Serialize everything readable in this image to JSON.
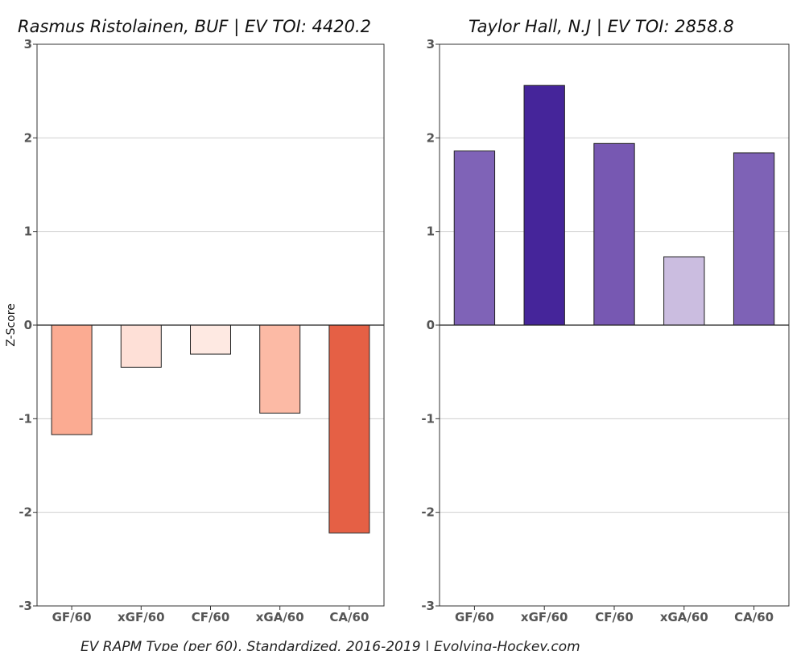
{
  "chart_data": [
    {
      "type": "bar",
      "title": "Rasmus Ristolainen, BUF  |  EV TOI: 4420.2",
      "ylabel": "Z-Score",
      "ylim": [
        -3,
        3
      ],
      "yticks": [
        "-3",
        "-2",
        "-1",
        "0",
        "1",
        "2",
        "3"
      ],
      "categories": [
        "GF/60",
        "xGF/60",
        "CF/60",
        "xGA/60",
        "CA/60"
      ],
      "values": [
        -1.17,
        -0.45,
        -0.31,
        -0.94,
        -2.22
      ],
      "colors": [
        "#fbab92",
        "#fee0d7",
        "#fee9e2",
        "#fcbaa5",
        "#e56045"
      ],
      "grid": true
    },
    {
      "type": "bar",
      "title": "Taylor Hall, N.J  |  EV TOI: 2858.8",
      "ylim": [
        -3,
        3
      ],
      "yticks": [
        "-3",
        "-2",
        "-1",
        "0",
        "1",
        "2",
        "3"
      ],
      "categories": [
        "GF/60",
        "xGF/60",
        "CF/60",
        "xGA/60",
        "CA/60"
      ],
      "values": [
        1.86,
        2.56,
        1.94,
        0.73,
        1.84
      ],
      "colors": [
        "#7f63b7",
        "#45259a",
        "#7758b2",
        "#cbbde0",
        "#7e62b6"
      ],
      "grid": true
    }
  ],
  "footer": "EV RAPM Type (per 60), Standardized, 2016-2019  |  Evolving-Hockey.com"
}
